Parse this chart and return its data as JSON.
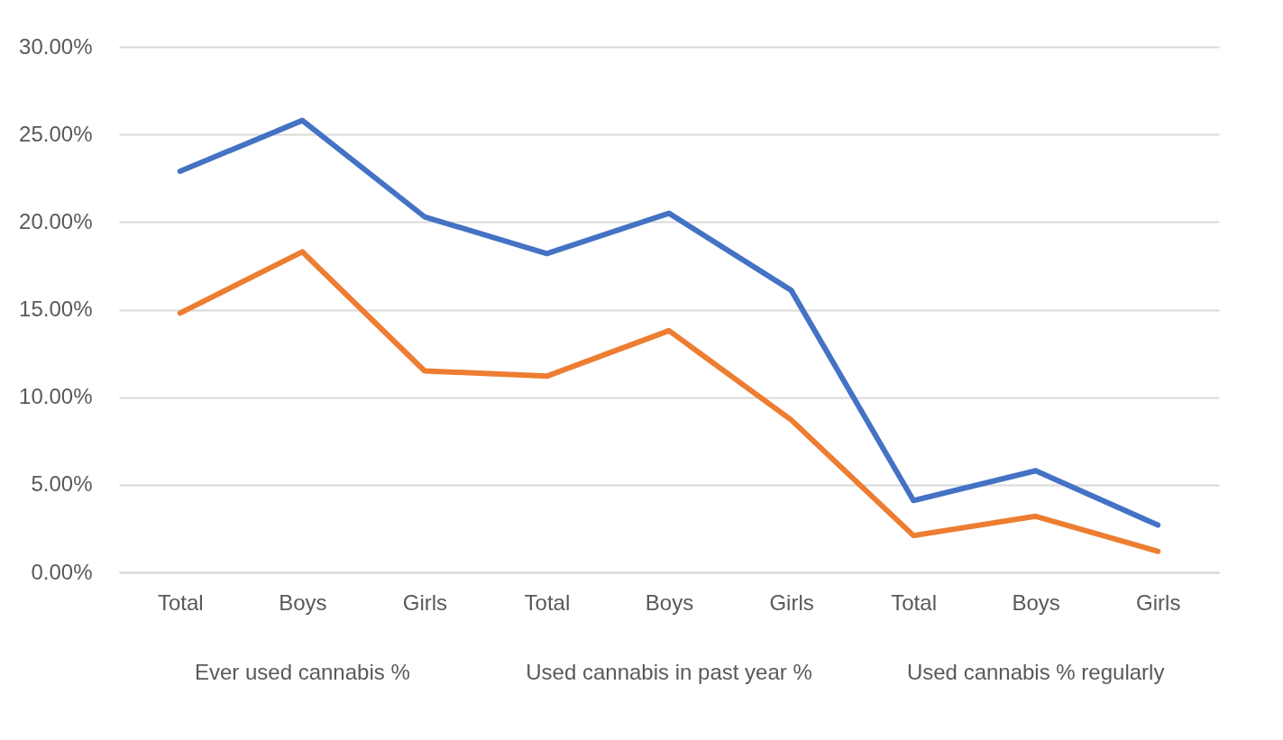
{
  "chart_data": {
    "type": "line",
    "categories": [
      "Total",
      "Boys",
      "Girls",
      "Total",
      "Boys",
      "Girls",
      "Total",
      "Boys",
      "Girls"
    ],
    "series": [
      {
        "color": "#4472c4",
        "values": [
          22.9,
          25.8,
          20.3,
          18.2,
          20.5,
          16.1,
          4.1,
          5.8,
          2.7
        ]
      },
      {
        "color": "#ed7d31",
        "values": [
          14.8,
          18.3,
          11.5,
          11.2,
          13.8,
          8.7,
          2.1,
          3.2,
          1.2
        ]
      }
    ],
    "ylim": [
      0,
      30
    ],
    "yticks": [
      {
        "value": 0,
        "label": "0.00%"
      },
      {
        "value": 5,
        "label": "5.00%"
      },
      {
        "value": 10,
        "label": "10.00%"
      },
      {
        "value": 15,
        "label": "15.00%"
      },
      {
        "value": 20,
        "label": "20.00%"
      },
      {
        "value": 25,
        "label": "25.00%"
      },
      {
        "value": 30,
        "label": "30.00%"
      }
    ],
    "grid": "y",
    "marker": "none",
    "line_style": "solid",
    "annotations": [
      "Ever used cannabis %",
      "Used cannabis in past year %",
      "Used cannabis % regularly"
    ]
  }
}
